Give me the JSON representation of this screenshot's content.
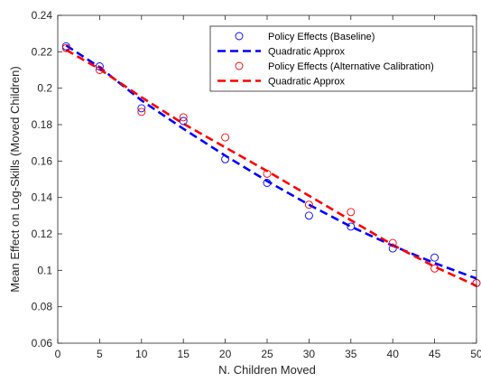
{
  "chart_data": {
    "type": "scatter",
    "xlabel": "N. Children Moved",
    "ylabel": "Mean Effect on Log-Skills (Moved Children)",
    "xlim": [
      0,
      50
    ],
    "ylim": [
      0.06,
      0.24
    ],
    "xticks": [
      0,
      5,
      10,
      15,
      20,
      25,
      30,
      35,
      40,
      45,
      50
    ],
    "yticks": [
      0.06,
      0.08,
      0.1,
      0.12,
      0.14,
      0.16,
      0.18,
      0.2,
      0.22,
      0.24
    ],
    "legend_position": "top-right",
    "grid": false,
    "series": [
      {
        "name": "Policy Effects (Baseline)",
        "kind": "markers",
        "color": "#0000ff",
        "x": [
          1,
          5,
          10,
          15,
          20,
          25,
          30,
          35,
          40,
          45,
          50
        ],
        "y": [
          0.223,
          0.212,
          0.189,
          0.182,
          0.161,
          0.148,
          0.13,
          0.124,
          0.112,
          0.107,
          0.093
        ]
      },
      {
        "name": "Quadratic Approx",
        "kind": "dashed-line",
        "color": "#0000ff",
        "x": [
          1,
          5,
          10,
          15,
          20,
          25,
          30,
          35,
          40,
          45,
          50
        ],
        "y": [
          0.2235,
          0.2115,
          0.1933,
          0.1777,
          0.163,
          0.149,
          0.136,
          0.124,
          0.1135,
          0.104,
          0.0955
        ]
      },
      {
        "name": "Policy Effects (Alternative Calibration)",
        "kind": "markers",
        "color": "#ff0000",
        "x": [
          1,
          5,
          10,
          15,
          20,
          25,
          30,
          35,
          40,
          45,
          50
        ],
        "y": [
          0.222,
          0.21,
          0.187,
          0.184,
          0.173,
          0.153,
          0.136,
          0.132,
          0.115,
          0.101,
          0.093
        ]
      },
      {
        "name": "Quadratic Approx",
        "kind": "dashed-line",
        "color": "#ff0000",
        "x": [
          1,
          5,
          10,
          15,
          20,
          25,
          30,
          35,
          40,
          45,
          50
        ],
        "y": [
          0.221,
          0.2105,
          0.195,
          0.1805,
          0.1675,
          0.1545,
          0.141,
          0.1275,
          0.114,
          0.102,
          0.0915
        ]
      }
    ]
  }
}
